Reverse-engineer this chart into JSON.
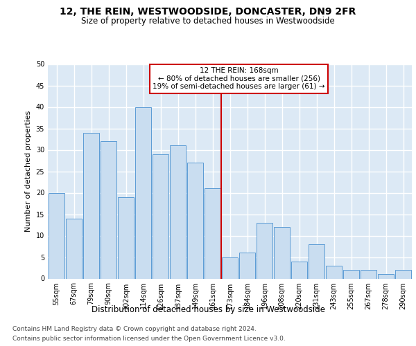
{
  "title1": "12, THE REIN, WESTWOODSIDE, DONCASTER, DN9 2FR",
  "title2": "Size of property relative to detached houses in Westwoodside",
  "xlabel": "Distribution of detached houses by size in Westwoodside",
  "ylabel": "Number of detached properties",
  "footnote1": "Contains HM Land Registry data © Crown copyright and database right 2024.",
  "footnote2": "Contains public sector information licensed under the Open Government Licence v3.0.",
  "categories": [
    "55sqm",
    "67sqm",
    "79sqm",
    "90sqm",
    "102sqm",
    "114sqm",
    "126sqm",
    "137sqm",
    "149sqm",
    "161sqm",
    "173sqm",
    "184sqm",
    "196sqm",
    "208sqm",
    "220sqm",
    "231sqm",
    "243sqm",
    "255sqm",
    "267sqm",
    "278sqm",
    "290sqm"
  ],
  "values": [
    20,
    14,
    34,
    32,
    19,
    40,
    29,
    31,
    27,
    21,
    5,
    6,
    13,
    12,
    4,
    8,
    3,
    2,
    2,
    1,
    2
  ],
  "bar_color": "#c9ddf0",
  "bar_edge_color": "#5b9bd5",
  "vline_x": 9.5,
  "vline_color": "#cc0000",
  "annotation_line1": "12 THE REIN: 168sqm",
  "annotation_line2": "← 80% of detached houses are smaller (256)",
  "annotation_line3": "19% of semi-detached houses are larger (61) →",
  "annotation_box_edgecolor": "#cc0000",
  "ylim": [
    0,
    50
  ],
  "yticks": [
    0,
    5,
    10,
    15,
    20,
    25,
    30,
    35,
    40,
    45,
    50
  ],
  "background_color": "#dce9f5",
  "grid_color": "#ffffff",
  "title1_fontsize": 10,
  "title2_fontsize": 8.5,
  "xlabel_fontsize": 8.5,
  "ylabel_fontsize": 8,
  "tick_fontsize": 7,
  "footnote_fontsize": 6.5,
  "ann_fontsize": 7.5
}
